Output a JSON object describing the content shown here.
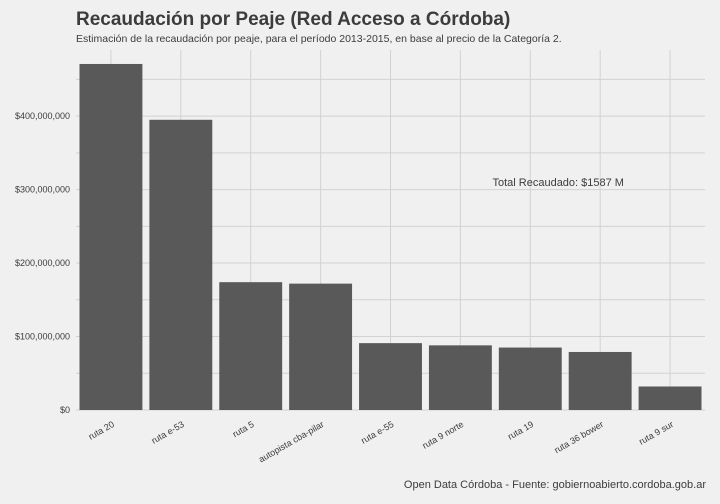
{
  "chart_data": {
    "type": "bar",
    "title": "Recaudación por Peaje (Red Acceso a Córdoba)",
    "subtitle": "Estimación de la recaudación por peaje, para el período 2013-2015, en base al precio de la Categoría 2.",
    "xlabel": "",
    "ylabel": "",
    "categories": [
      "ruta 20",
      "ruta e-53",
      "ruta 5",
      "autopista cba-pilar",
      "ruta e-55",
      "ruta 9 norte",
      "ruta 19",
      "ruta 36 bower",
      "ruta 9 sur"
    ],
    "values": [
      471000000,
      395000000,
      174000000,
      172000000,
      91000000,
      88000000,
      85000000,
      79000000,
      32000000
    ],
    "ylim": [
      0,
      490000000
    ],
    "yticks": [
      0,
      100000000,
      200000000,
      300000000,
      400000000
    ],
    "ytick_labels": [
      "$0",
      "$100,000,000",
      "$200,000,000",
      "$300,000,000",
      "$400,000,000"
    ],
    "annotation": "Total Recaudado: $1587 M",
    "caption": "Open Data Córdoba - Fuente: gobiernoabierto.cordoba.gob.ar",
    "grid": true,
    "colors": {
      "bar": "#595959",
      "background": "#f0f0f0",
      "grid": "#d2d2d2",
      "text": "#3c3c3c"
    }
  }
}
